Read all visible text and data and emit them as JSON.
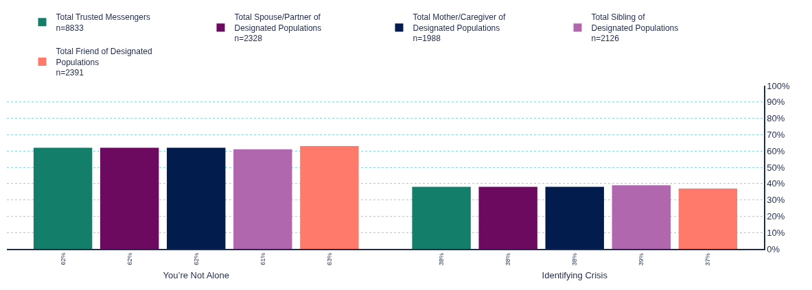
{
  "chart_data": {
    "type": "bar",
    "categories": [
      "You’re Not Alone",
      "Identifying Crisis"
    ],
    "series": [
      {
        "name": "Total Trusted Messengers\nn=8833",
        "color": "#137f6b",
        "values": [
          62,
          38
        ],
        "value_labels": [
          "62%",
          "38%"
        ]
      },
      {
        "name": "Total Spouse/Partner of Designated Populations\nn=2328",
        "color": "#6b0a5e",
        "values": [
          62,
          38
        ],
        "value_labels": [
          "62%",
          "38%"
        ]
      },
      {
        "name": "Total Mother/Caregiver of Designated Populations\nn=1988",
        "color": "#011c4d",
        "values": [
          62,
          38
        ],
        "value_labels": [
          "62%",
          "38%"
        ]
      },
      {
        "name": "Total Sibling of Designated Populations\nn=2126",
        "color": "#b067ae",
        "values": [
          61,
          39
        ],
        "value_labels": [
          "61%",
          "39%"
        ]
      },
      {
        "name": "Total Friend of Designated Populations\nn=2391",
        "color": "#ff7a6b",
        "values": [
          63,
          37
        ],
        "value_labels": [
          "63%",
          "37%"
        ]
      }
    ],
    "ylim": [
      0,
      100
    ],
    "yticks": [
      {
        "value": 0,
        "label": "0%"
      },
      {
        "value": 10,
        "label": "10%"
      },
      {
        "value": 20,
        "label": "20%"
      },
      {
        "value": 30,
        "label": "30%"
      },
      {
        "value": 40,
        "label": "40%"
      },
      {
        "value": 50,
        "label": "50%"
      },
      {
        "value": 60,
        "label": "60%"
      },
      {
        "value": 70,
        "label": "70%"
      },
      {
        "value": 80,
        "label": "80%"
      },
      {
        "value": 90,
        "label": "90%"
      },
      {
        "value": 100,
        "label": "100%"
      }
    ],
    "grid": "y",
    "legend": "top"
  }
}
